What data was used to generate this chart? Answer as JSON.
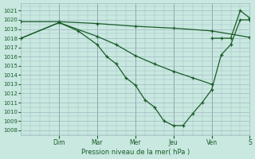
{
  "bg_color": "#c8e8e0",
  "grid_color": "#a0b8c0",
  "line_color": "#1a5c28",
  "xlabel": "Pression niveau de la mer( hPa )",
  "ylim": [
    1007.5,
    1021.8
  ],
  "xlim": [
    0,
    12
  ],
  "day_tick_positions": [
    2,
    4,
    6,
    8,
    10,
    12
  ],
  "day_tick_labels": [
    "Dim",
    "Mar",
    "Mer",
    "Jeu",
    "Ven",
    "S"
  ],
  "vline_positions": [
    2,
    4,
    6,
    8,
    10,
    12
  ],
  "line_A_x": [
    0,
    2,
    4,
    6,
    8,
    10,
    12
  ],
  "line_A_y": [
    1019.8,
    1019.8,
    1019.6,
    1019.3,
    1019.1,
    1018.8,
    1018.1
  ],
  "line_B_x": [
    0,
    2,
    4,
    5,
    6,
    7,
    8,
    9,
    10
  ],
  "line_B_y": [
    1018.0,
    1019.7,
    1018.2,
    1017.3,
    1016.1,
    1015.2,
    1014.4,
    1013.7,
    1013.0
  ],
  "line_C_x": [
    0,
    2,
    3,
    4,
    4.5,
    5,
    5.5,
    6,
    6.5,
    7,
    7.5,
    8,
    8.5,
    9,
    9.5,
    10,
    10.5,
    11,
    11.5,
    12
  ],
  "line_C_y": [
    1018.0,
    1019.7,
    1018.8,
    1017.3,
    1016.0,
    1015.2,
    1013.7,
    1012.9,
    1011.3,
    1010.5,
    1009.0,
    1008.5,
    1008.5,
    1009.8,
    1011.0,
    1012.4,
    1016.2,
    1017.3,
    1020.0,
    1020.0
  ],
  "line_D_x": [
    10,
    10.5,
    11,
    11.5,
    12
  ],
  "line_D_y": [
    1018.0,
    1018.0,
    1018.0,
    1021.0,
    1020.2
  ]
}
